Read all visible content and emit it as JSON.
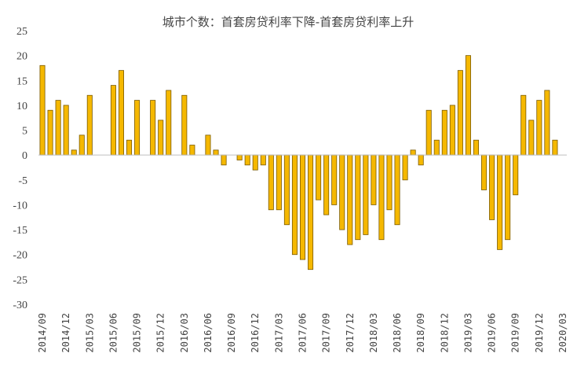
{
  "chart_data": {
    "type": "bar",
    "title": "城市个数：首套房贷利率下降-首套房贷利率上升",
    "xlabel": "",
    "ylabel": "",
    "ylim": [
      -30,
      25
    ],
    "yticks": [
      -30,
      -25,
      -20,
      -15,
      -10,
      -5,
      0,
      5,
      10,
      15,
      20,
      25
    ],
    "grid": false,
    "legend": "none",
    "bar_color": "#F5B800",
    "categories": [
      "2014/09",
      "2014/10",
      "2014/11",
      "2014/12",
      "2015/01",
      "2015/02",
      "2015/03",
      "2015/04",
      "2015/05",
      "2015/06",
      "2015/07",
      "2015/08",
      "2015/09",
      "2015/10",
      "2015/11",
      "2015/12",
      "2016/01",
      "2016/02",
      "2016/03",
      "2016/04",
      "2016/05",
      "2016/06",
      "2016/07",
      "2016/08",
      "2016/09",
      "2016/10",
      "2016/11",
      "2016/12",
      "2017/01",
      "2017/02",
      "2017/03",
      "2017/04",
      "2017/05",
      "2017/06",
      "2017/07",
      "2017/08",
      "2017/09",
      "2017/10",
      "2017/11",
      "2017/12",
      "2018/01",
      "2018/02",
      "2018/03",
      "2018/04",
      "2018/05",
      "2018/06",
      "2018/07",
      "2018/08",
      "2018/09",
      "2018/10",
      "2018/11",
      "2018/12",
      "2019/01",
      "2019/02",
      "2019/03",
      "2019/04",
      "2019/05",
      "2019/06",
      "2019/07",
      "2019/08",
      "2019/09",
      "2019/10",
      "2019/11",
      "2019/12",
      "2020/01",
      "2020/02",
      "2020/03"
    ],
    "values": [
      18,
      9,
      11,
      10,
      1,
      4,
      12,
      0,
      0,
      14,
      17,
      3,
      11,
      0,
      11,
      7,
      13,
      0,
      12,
      2,
      0,
      4,
      1,
      -2,
      0,
      -1,
      -2,
      -3,
      -2,
      -11,
      -11,
      -14,
      -20,
      -21,
      -23,
      -9,
      -12,
      -10,
      -15,
      -18,
      -17,
      -16,
      -10,
      -17,
      -11,
      -14,
      -5,
      1,
      -2,
      9,
      3,
      9,
      10,
      17,
      20,
      3,
      -7,
      -13,
      -19,
      -17,
      -8,
      12,
      7,
      11,
      13,
      3,
      0
    ],
    "tick_labels": [
      "2014/09",
      "2014/12",
      "2015/03",
      "2015/06",
      "2015/09",
      "2015/12",
      "2016/03",
      "2016/06",
      "2016/09",
      "2016/12",
      "2017/03",
      "2017/06",
      "2017/09",
      "2017/12",
      "2018/03",
      "2018/06",
      "2018/09",
      "2018/12",
      "2019/03",
      "2019/06",
      "2019/09",
      "2019/12",
      "2020/03"
    ]
  }
}
